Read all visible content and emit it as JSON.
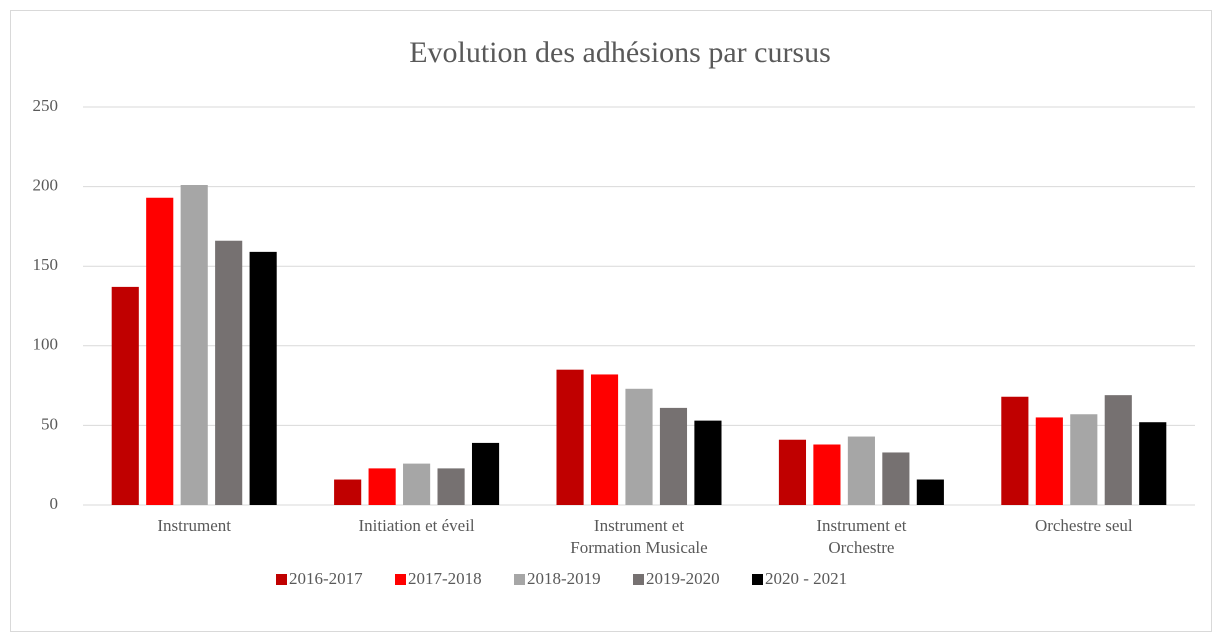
{
  "chart_data": {
    "type": "bar",
    "title": "Evolution des adhésions par cursus",
    "categories": [
      "Instrument",
      "Initiation et éveil",
      "Instrument et Formation Musicale",
      "Instrument et Orchestre",
      "Orchestre seul"
    ],
    "series": [
      {
        "name": "2016-2017",
        "color": "#c00000",
        "values": [
          137,
          16,
          85,
          41,
          68
        ]
      },
      {
        "name": "2017-2018",
        "color": "#ff0000",
        "values": [
          193,
          23,
          82,
          38,
          55
        ]
      },
      {
        "name": "2018-2019",
        "color": "#a6a6a6",
        "values": [
          201,
          26,
          73,
          43,
          57
        ]
      },
      {
        "name": "2019-2020",
        "color": "#767171",
        "values": [
          166,
          23,
          61,
          33,
          69
        ]
      },
      {
        "name": "2020 - 2021",
        "color": "#000000",
        "values": [
          159,
          39,
          53,
          16,
          52
        ]
      }
    ],
    "ylim": [
      0,
      250
    ],
    "yticks": [
      0,
      50,
      100,
      150,
      200,
      250
    ],
    "grid": true,
    "legend": "bottom"
  }
}
